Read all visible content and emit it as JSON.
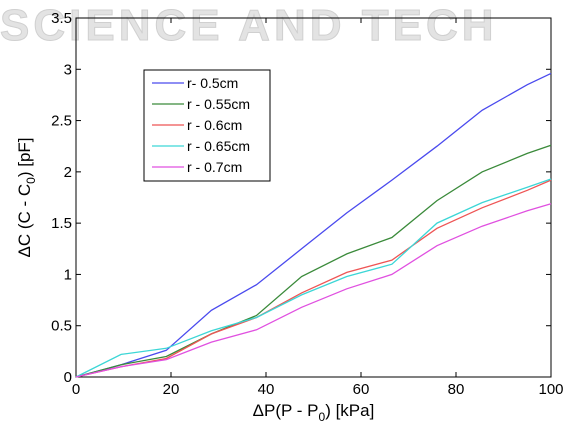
{
  "watermark": {
    "text": "SCIENCE AND TECH"
  },
  "chart_data": {
    "type": "line",
    "title": "",
    "xlabel": "ΔP(P - P0) [kPa]",
    "xlabel_parts": [
      "ΔP(P - P",
      "0",
      ") [kPa]"
    ],
    "ylabel": "ΔC (C - C0) [pF]",
    "ylabel_parts": [
      "ΔC (C - C",
      "0",
      ") [pF]"
    ],
    "xlim": [
      0,
      100
    ],
    "ylim": [
      0,
      3.5
    ],
    "xticks": [
      0,
      20,
      40,
      60,
      80,
      100
    ],
    "yticks": [
      0,
      0.5,
      1,
      1.5,
      2,
      2.5,
      3,
      3.5
    ],
    "ytick_labels": [
      "0",
      "0.5",
      "1",
      "1.5",
      "2",
      "2.5",
      "3",
      "3.5"
    ],
    "grid": false,
    "legend_position": "upper-left",
    "series": [
      {
        "name": "r- 0.5cm",
        "color": "#4a4aee",
        "x": [
          0,
          9.5,
          19,
          28.5,
          38,
          47.5,
          57,
          66.5,
          76,
          85.5,
          95,
          100
        ],
        "y": [
          0,
          0.12,
          0.26,
          0.65,
          0.9,
          1.25,
          1.6,
          1.92,
          2.25,
          2.6,
          2.85,
          2.96
        ]
      },
      {
        "name": "r - 0.55cm",
        "color": "#3a8a3a",
        "x": [
          0,
          9.5,
          19,
          28.5,
          38,
          47.5,
          57,
          66.5,
          76,
          85.5,
          95,
          100
        ],
        "y": [
          0,
          0.12,
          0.2,
          0.42,
          0.6,
          0.98,
          1.2,
          1.36,
          1.72,
          2.0,
          2.18,
          2.26
        ]
      },
      {
        "name": "r - 0.6cm",
        "color": "#ee5555",
        "x": [
          0,
          9.5,
          19,
          28.5,
          38,
          47.5,
          57,
          66.5,
          76,
          85.5,
          95,
          100
        ],
        "y": [
          0,
          0.1,
          0.18,
          0.42,
          0.58,
          0.82,
          1.02,
          1.14,
          1.45,
          1.65,
          1.82,
          1.92
        ]
      },
      {
        "name": "r - 0.65cm",
        "color": "#3cd6d6",
        "x": [
          0,
          9.5,
          19,
          28.5,
          38,
          47.5,
          57,
          66.5,
          76,
          85.5,
          95,
          100
        ],
        "y": [
          0,
          0.22,
          0.28,
          0.45,
          0.58,
          0.8,
          0.98,
          1.1,
          1.5,
          1.7,
          1.85,
          1.93
        ]
      },
      {
        "name": "r - 0.7cm",
        "color": "#e050e0",
        "x": [
          0,
          9.5,
          19,
          28.5,
          38,
          47.5,
          57,
          66.5,
          76,
          85.5,
          95,
          100
        ],
        "y": [
          0,
          0.1,
          0.17,
          0.34,
          0.46,
          0.68,
          0.86,
          1.0,
          1.28,
          1.47,
          1.62,
          1.69
        ]
      }
    ]
  }
}
